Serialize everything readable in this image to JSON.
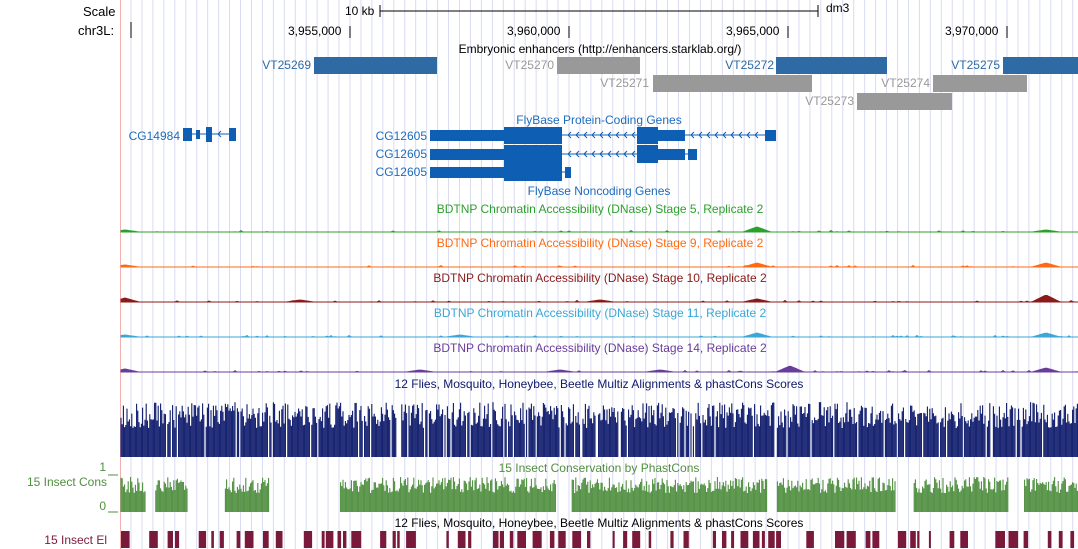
{
  "ruler": {
    "scale_label": "Scale",
    "scale_bar_label": "10 kb",
    "assembly": "dm3",
    "chrom_label": "chr3L:",
    "ticks": [
      "3,955,000",
      "3,960,000",
      "3,965,000",
      "3,970,000"
    ]
  },
  "enhancers": {
    "title": "Embryonic enhancers (http://enhancers.starklab.org/)",
    "items": [
      {
        "name": "VT25269",
        "status": "active"
      },
      {
        "name": "VT25270",
        "status": "inactive"
      },
      {
        "name": "VT25271",
        "status": "inactive"
      },
      {
        "name": "VT25272",
        "status": "active"
      },
      {
        "name": "VT25273",
        "status": "inactive"
      },
      {
        "name": "VT25274",
        "status": "inactive"
      },
      {
        "name": "VT25275",
        "status": "active"
      }
    ]
  },
  "genes": {
    "title": "FlyBase Protein-Coding Genes",
    "items": [
      {
        "name": "CG14984"
      },
      {
        "name": "CG12605"
      },
      {
        "name": "CG12605"
      },
      {
        "name": "CG12605"
      }
    ]
  },
  "noncoding": {
    "title": "FlyBase Noncoding Genes"
  },
  "dnase_tracks": [
    {
      "title": "BDTNP Chromatin Accessibility (DNase) Stage 5, Replicate 2",
      "color": "#2ca02c"
    },
    {
      "title": "BDTNP Chromatin Accessibility (DNase) Stage 9, Replicate 2",
      "color": "#ff6a13"
    },
    {
      "title": "BDTNP Chromatin Accessibility (DNase) Stage 10, Replicate 2",
      "color": "#8b1a1a"
    },
    {
      "title": "BDTNP Chromatin Accessibility (DNase) Stage 11, Replicate 2",
      "color": "#3ba7d6"
    },
    {
      "title": "BDTNP Chromatin Accessibility (DNase) Stage 14, Replicate 2",
      "color": "#6a3d9a"
    }
  ],
  "multiz": {
    "title": "12 Flies, Mosquito, Honeybee, Beetle Multiz Alignments & phastCons Scores",
    "color": "#0d1a6b"
  },
  "phastcons": {
    "title": "15 Insect Conservation by PhastCons",
    "side_label": "15 Insect Cons",
    "ymax_label": "1",
    "ymin_label": "0",
    "color": "#4f8f3f"
  },
  "elements": {
    "title": "12 Flies, Mosquito, Honeybee, Beetle Multiz Alignments & phastCons Scores",
    "side_label": "15 Insect El",
    "color": "#7a1a3a"
  },
  "colors": {
    "active": "#2e6aa3",
    "inactive": "#999999",
    "gene": "#0e5fb3",
    "gene_label": "#1d6bbd",
    "grid": "#d8dbf2",
    "left_margin": "#f2b0b0"
  }
}
